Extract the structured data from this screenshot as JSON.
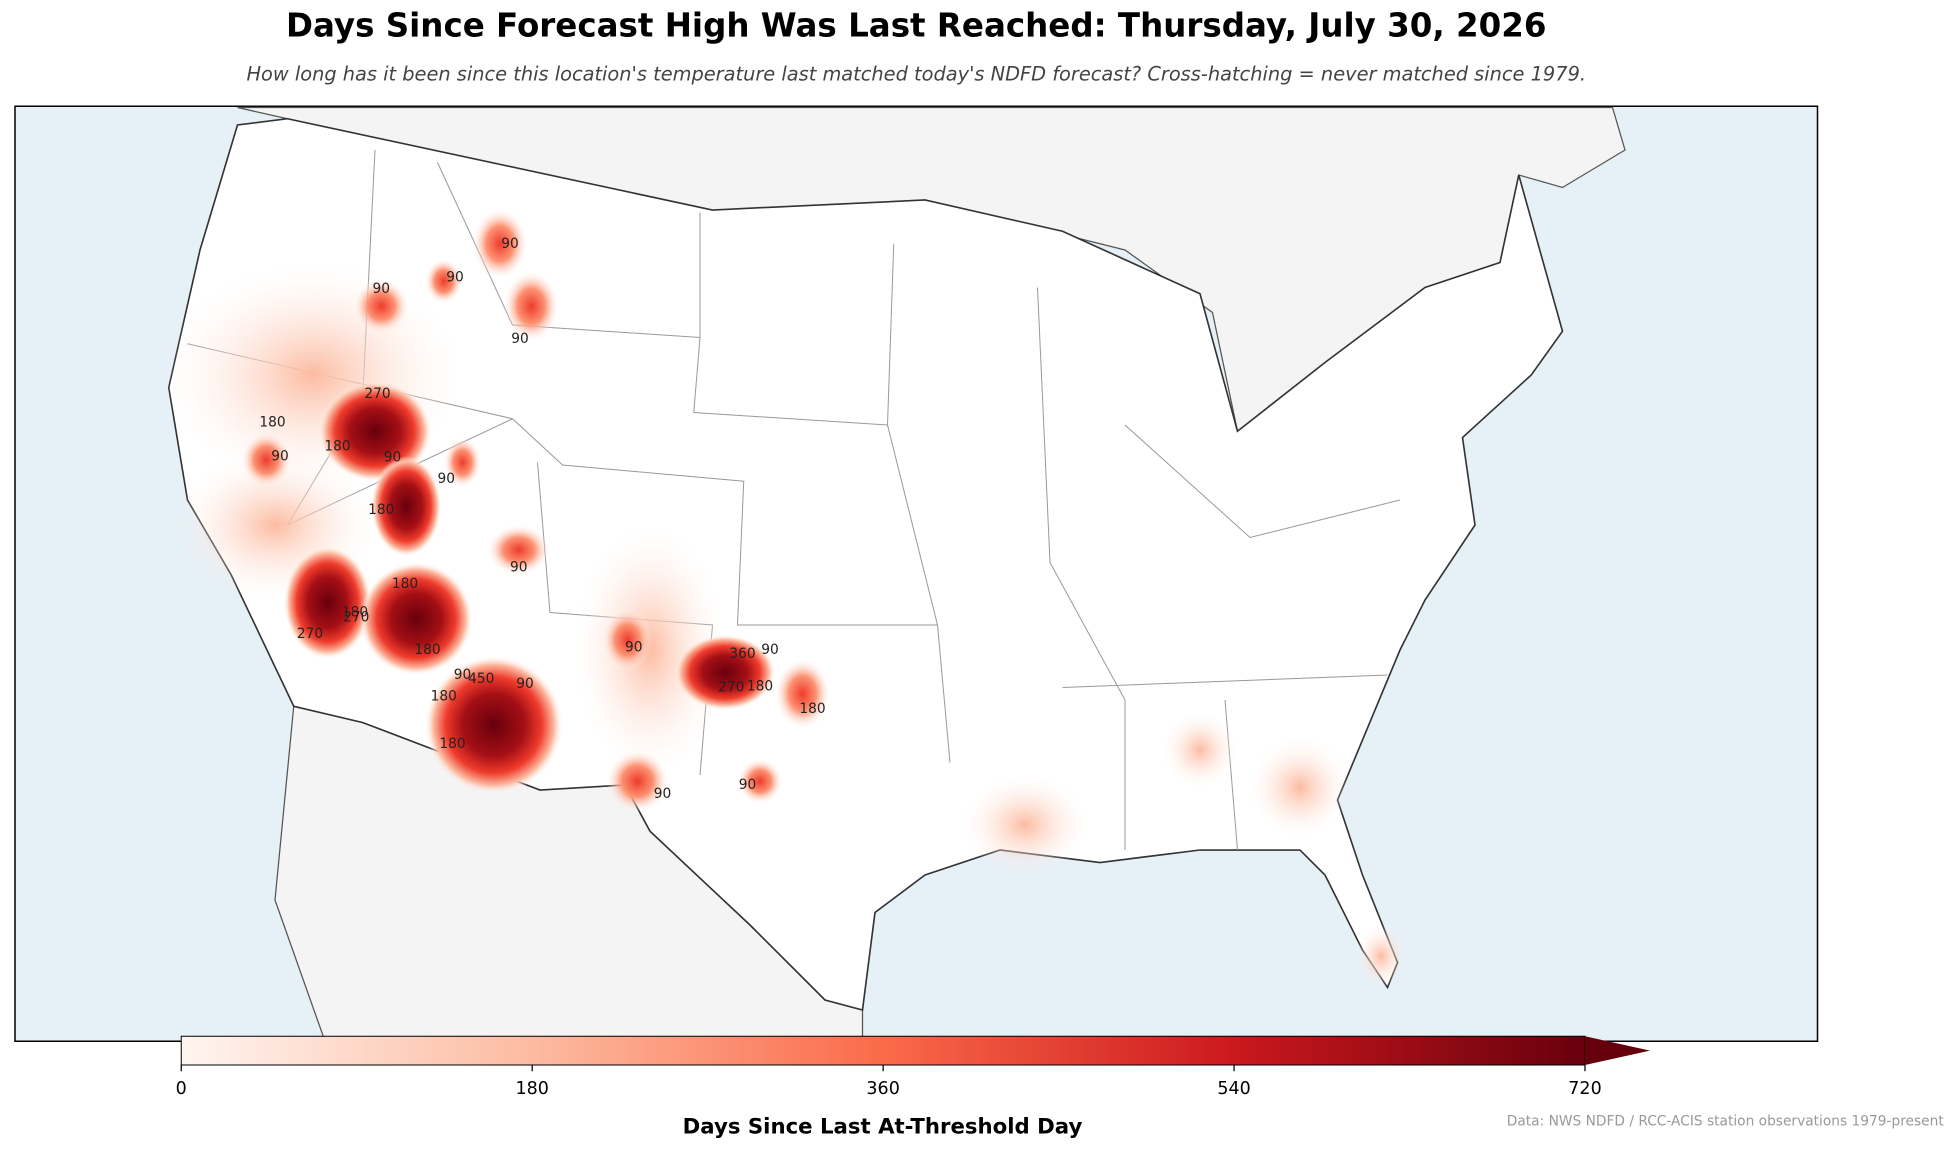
{
  "chart_data": {
    "type": "map",
    "title": "Days Since Forecast High Was Last Reached: Thursday, July 30, 2026",
    "subtitle": "How long has it been since this location's temperature last matched today's NDFD forecast? Cross-hatching = never matched since 1979.",
    "colorbar": {
      "label": "Days Since Last At-Threshold Day",
      "lim": [
        0,
        720
      ],
      "ticks": [
        0,
        180,
        360,
        540,
        720
      ],
      "colors": [
        "#fff5f0",
        "#fcbba1",
        "#fb6a4a",
        "#cb181d",
        "#67000d"
      ]
    },
    "contour_labels": [
      "90",
      "180",
      "90",
      "90",
      "90",
      "90",
      "180",
      "90",
      "90",
      "180",
      "270",
      "180",
      "90",
      "180",
      "90",
      "270",
      "270",
      "180",
      "90",
      "180",
      "450",
      "90",
      "180",
      "360",
      "270",
      "90",
      "180",
      "180",
      "90",
      "90"
    ],
    "source": "Data: NWS NDFD / RCC-ACIS station observations 1979-present"
  }
}
